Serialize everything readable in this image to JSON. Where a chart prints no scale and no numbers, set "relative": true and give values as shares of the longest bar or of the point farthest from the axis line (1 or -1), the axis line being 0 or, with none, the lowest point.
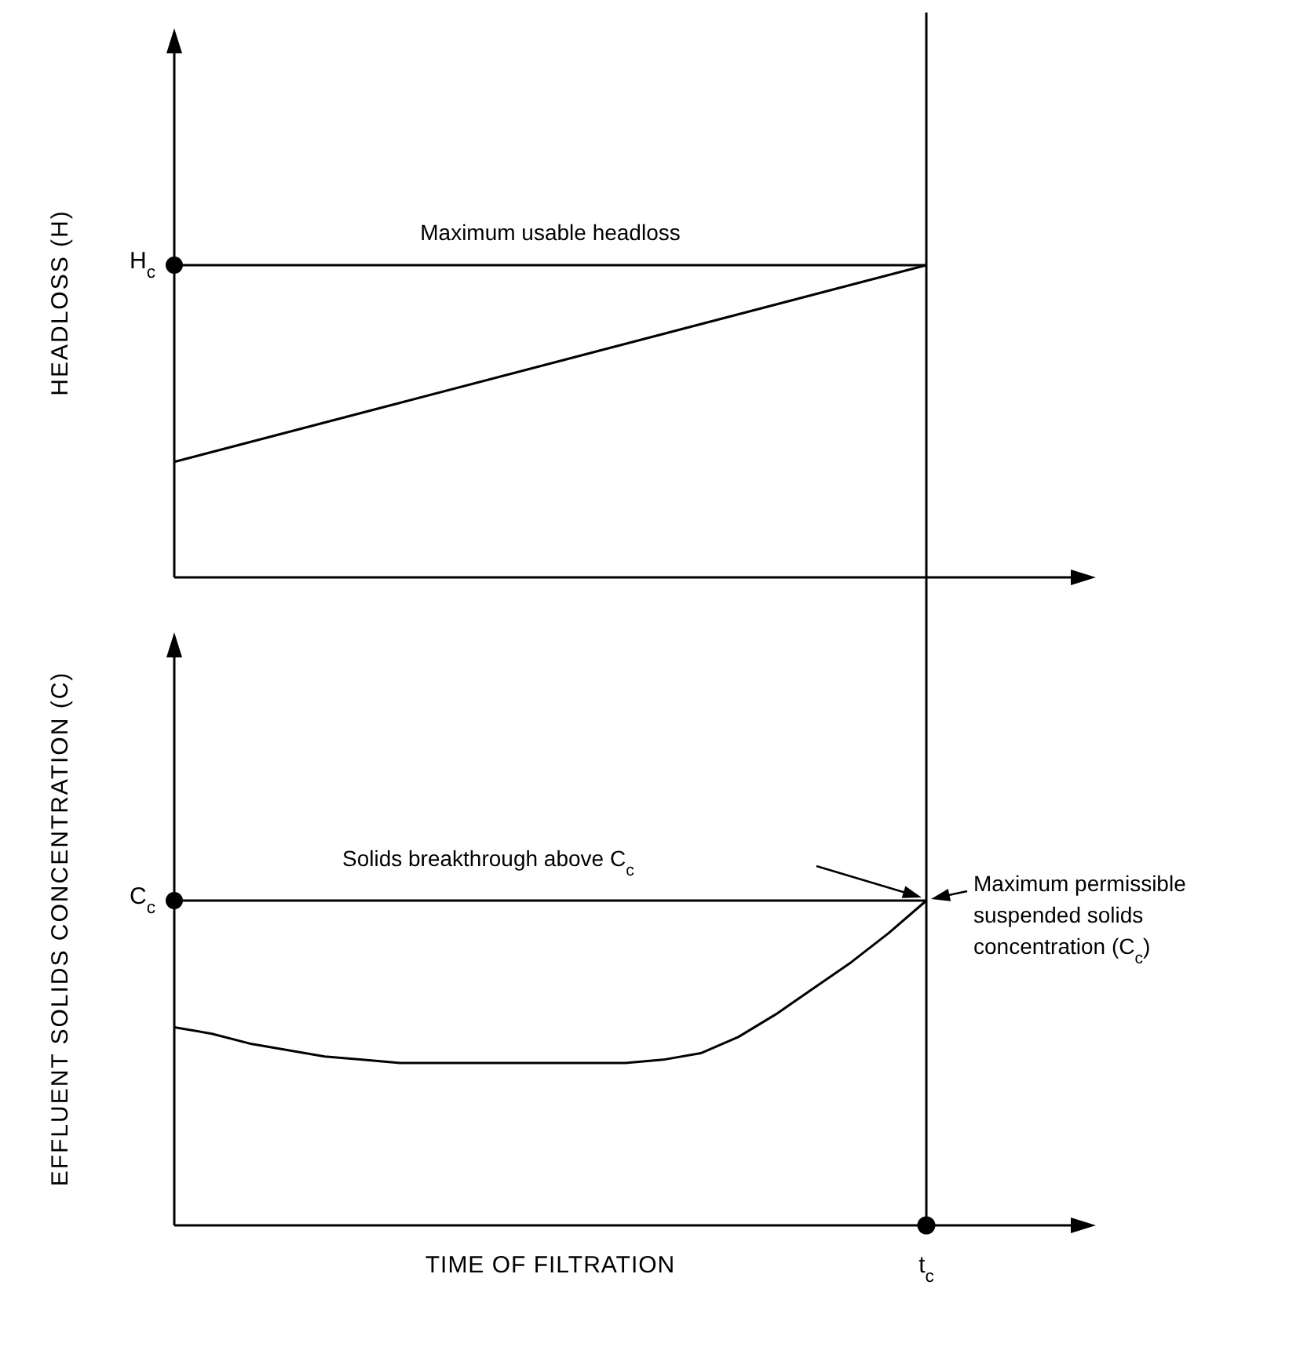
{
  "chart_data": [
    {
      "type": "line",
      "relative": true,
      "ylabel": "HEADLOSS (H)",
      "categories": [
        null,
        null
      ],
      "series": [
        {
          "color": "#000000",
          "values": [
            0.37,
            1
          ]
        },
        {
          "color": "#000000",
          "values": [
            1,
            1
          ]
        }
      ],
      "annotations": [
        "H$_{c}$",
        "Maximum usable headloss"
      ]
    },
    {
      "type": "line",
      "relative": true,
      "ylabel": "EFFLUENT SOLIDS CONCENTRATION (C)",
      "xlabel": "TIME OF FILTRATION",
      "categories": [
        null,
        null,
        null,
        null,
        null,
        null,
        null,
        null,
        null,
        null,
        null,
        null,
        null,
        null,
        null,
        null,
        null,
        null,
        null,
        null,
        null
      ],
      "series": [
        {
          "color": "#000000",
          "values": [
            0.61,
            0.59,
            0.56,
            0.54,
            0.52,
            0.51,
            0.5,
            0.5,
            0.5,
            0.5,
            0.5,
            0.5,
            0.5,
            0.51,
            0.53,
            0.58,
            0.65,
            0.73,
            0.81,
            0.9,
            1
          ]
        },
        {
          "color": "#000000",
          "values": [
            1,
            1,
            1,
            1,
            1,
            1,
            1,
            1,
            1,
            1,
            1,
            1,
            1,
            1,
            1,
            1,
            1,
            1,
            1,
            1,
            1
          ]
        }
      ],
      "annotations": [
        "C$_{c}$",
        "t$_{c}$",
        "Solids breakthrough above C$_{c}$",
        "Maximum permissible suspended solids concentration (C$_{c}$)"
      ]
    }
  ]
}
